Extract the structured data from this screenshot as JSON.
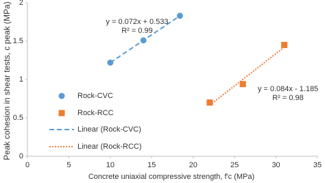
{
  "chart_data": {
    "type": "scatter",
    "x_label": "Concrete uniaxial compressive strength, f'c (MPa)",
    "y_label": "Peak cohesion in shear tests, c peak (MPa)",
    "xlim": [
      0,
      35
    ],
    "xticks": [
      0,
      5,
      10,
      15,
      20,
      25,
      30,
      35
    ],
    "ylim": [
      0,
      2
    ],
    "yticks": [
      0,
      0.5,
      1,
      1.5,
      2
    ],
    "grid": false,
    "legend": "left",
    "series": [
      {
        "name": "Rock-CVC",
        "color": "#5b9bd5",
        "marker": "circle",
        "x": [
          10,
          14,
          18.4
        ],
        "values": [
          1.22,
          1.51,
          1.83
        ],
        "trendline": {
          "name": "Linear (Rock-CVC)",
          "style": "dashed",
          "equation": "y = 0.072x + 0.533",
          "r2": "R² = 0.99"
        }
      },
      {
        "name": "Rock-RCC",
        "color": "#ed7d31",
        "marker": "square",
        "x": [
          22,
          26,
          31
        ],
        "values": [
          0.7,
          0.94,
          1.45
        ],
        "trendline": {
          "name": "Linear (Rock-RCC)",
          "style": "dotted",
          "equation": "y = 0.084x - 1.185",
          "r2": "R² = 0.98"
        }
      }
    ]
  }
}
